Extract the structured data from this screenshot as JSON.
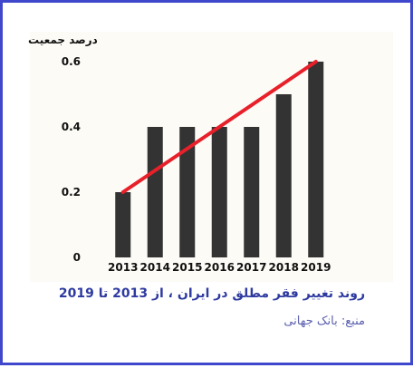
{
  "chart_data": {
    "type": "bar",
    "title": "روند تغییر فقر مطلق در ایران ، از 2013 تا 2019",
    "source": "منبع: بانک جهانی",
    "ylabel": "درصد جمعیت",
    "xlabel": "",
    "categories": [
      "2013",
      "2014",
      "2015",
      "2016",
      "2017",
      "2018",
      "2019"
    ],
    "values": [
      0.2,
      0.4,
      0.4,
      0.4,
      0.4,
      0.5,
      0.6
    ],
    "yticks": [
      "0",
      "0.2",
      "0.4",
      "0.6"
    ],
    "ytick_values": [
      0,
      0.2,
      0.4,
      0.6
    ],
    "ylim": [
      0,
      0.6
    ],
    "grid": false,
    "trendline": {
      "from": [
        "2013",
        0.2
      ],
      "to": [
        "2019",
        0.6
      ],
      "color": "#e8202a"
    },
    "bar_color": "#333333",
    "title_color": "#2e3aa0",
    "frame_color": "#3f48cc"
  }
}
